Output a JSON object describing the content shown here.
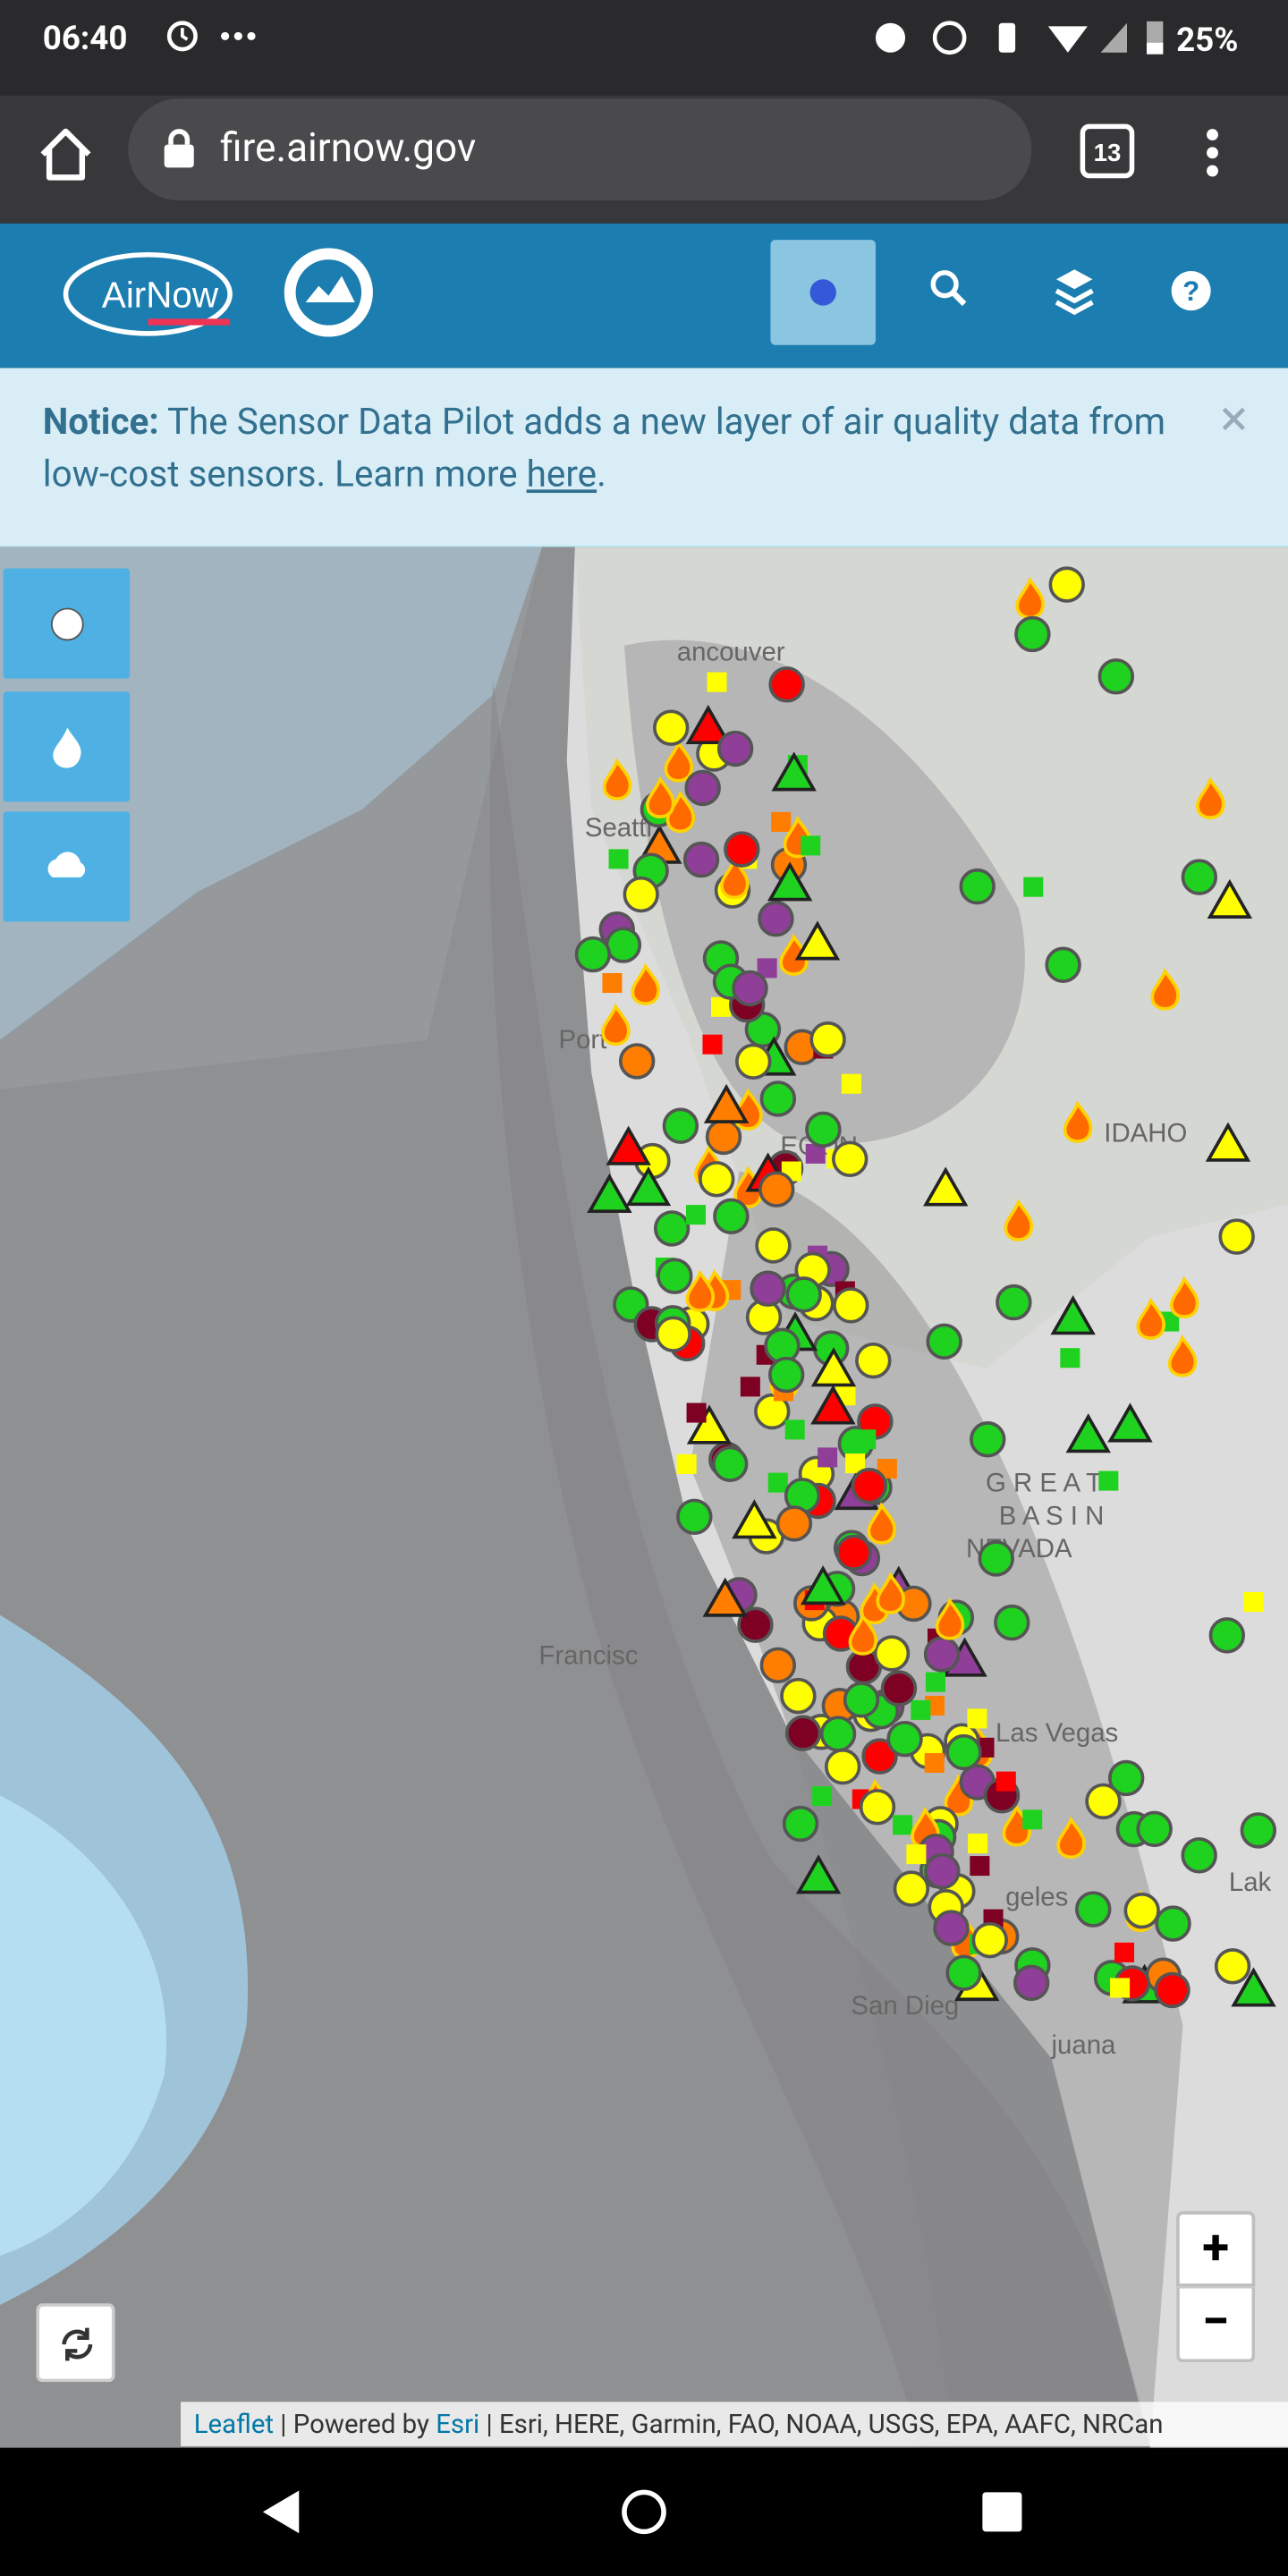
{
  "status_bar": {
    "time": "06:40",
    "battery": "25%"
  },
  "browser": {
    "url": "fire.airnow.gov",
    "tab_count": "13"
  },
  "app_header": {
    "logo": "AirNow"
  },
  "notice": {
    "label": "Notice:",
    "text": " The Sensor Data Pilot adds a new layer of air quality data from low-cost sensors. Learn more ",
    "link": "here",
    "end": "."
  },
  "map": {
    "labels": [
      "ancouver",
      "Seattl",
      "Port",
      "EGON",
      "IDAHO",
      "G R E A T",
      "B A S I N",
      "NEVADA",
      "Francisc",
      "Las Vegas",
      "geles",
      "San Dieg",
      "juana",
      "Lak"
    ],
    "zoom_in": "+",
    "zoom_out": "−"
  },
  "attribution": {
    "leaflet": "Leaflet",
    "powered": " | Powered by ",
    "esri": "Esri",
    "sources": " | Esri, HERE, Garmin, FAO, NOAA, USGS, EPA, AAFC, NRCan"
  }
}
